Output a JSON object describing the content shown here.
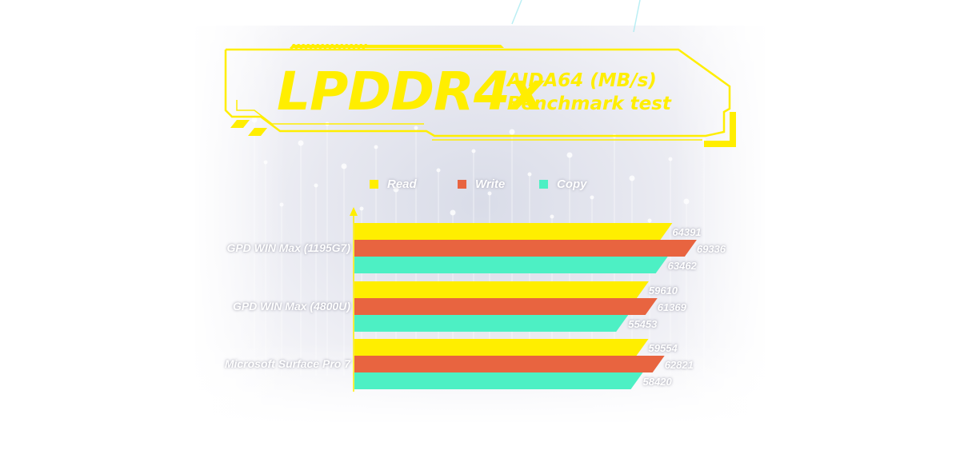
{
  "title": {
    "main": "LPDDR4x",
    "sub_line1": "AIDA64 (MB/s)",
    "sub_line2": "Benchmark test"
  },
  "colors": {
    "read": "#ffee00",
    "write": "#e86440",
    "copy": "#4df0c4",
    "frame": "#ffee00"
  },
  "chart_data": {
    "type": "bar",
    "orientation": "horizontal",
    "categories": [
      "GPD WIN Max (1195G7)",
      "GPD WIN Max (4800U)",
      "Microsoft Surface Pro 7"
    ],
    "series": [
      {
        "name": "Read",
        "values": [
          64391,
          59610,
          59554
        ]
      },
      {
        "name": "Write",
        "values": [
          69336,
          61369,
          62821
        ]
      },
      {
        "name": "Copy",
        "values": [
          63462,
          55453,
          58420
        ]
      }
    ],
    "legend_position": "top",
    "data_labels": true,
    "xlim": [
      0,
      70000
    ]
  }
}
